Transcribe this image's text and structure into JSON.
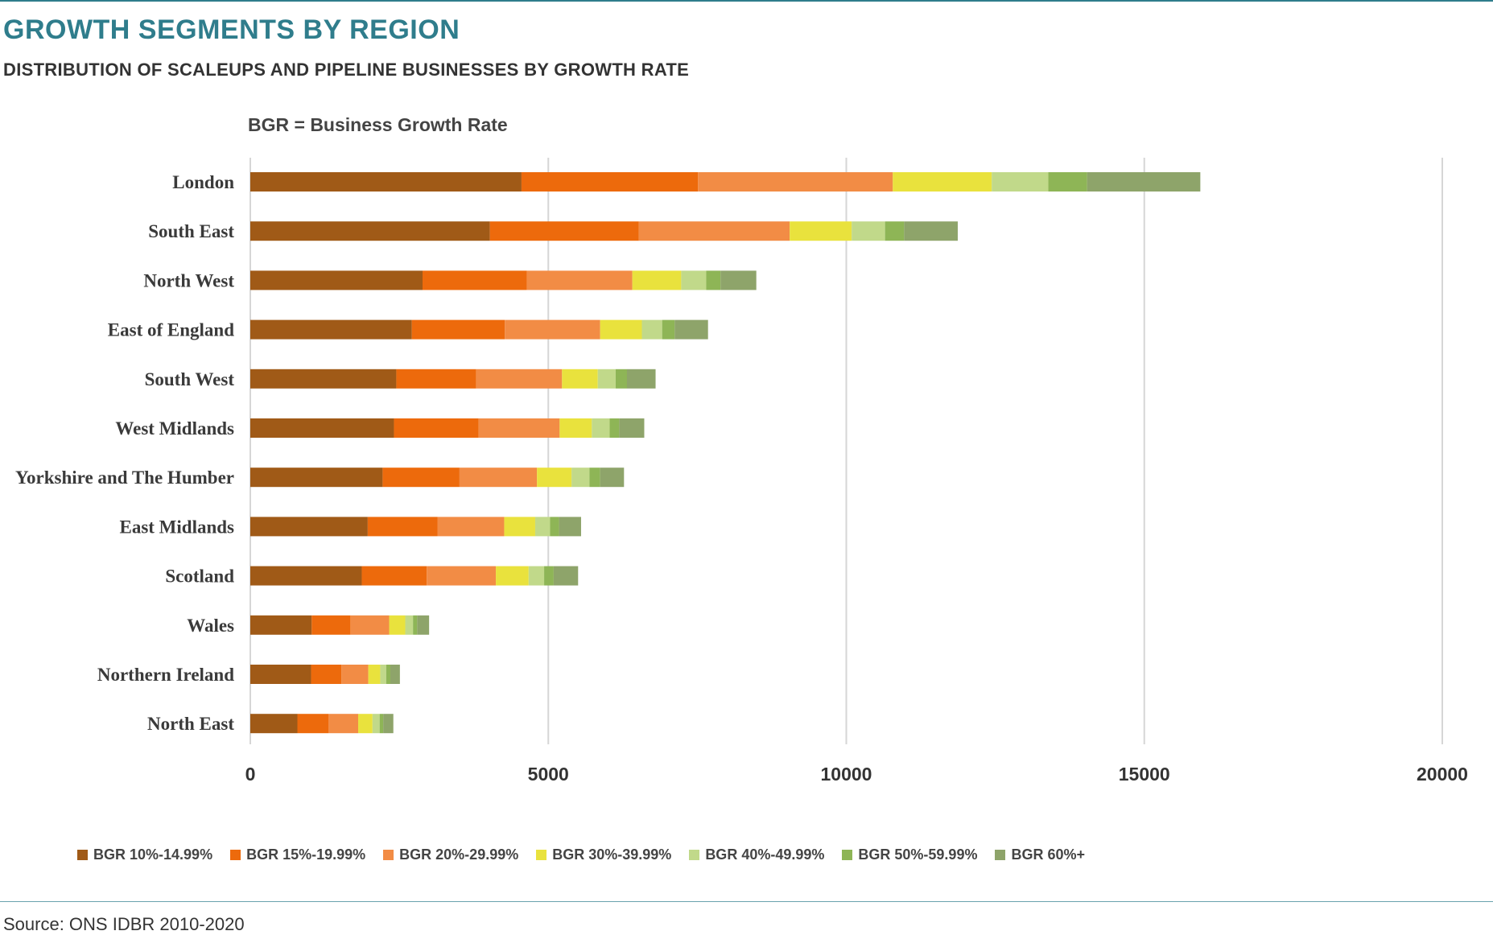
{
  "header": {
    "title": "GROWTH SEGMENTS BY REGION",
    "subtitle": "DISTRIBUTION OF SCALEUPS AND PIPELINE BUSINESSES BY GROWTH RATE",
    "note": "BGR = Business Growth Rate"
  },
  "footer": {
    "source": "Source: ONS IDBR 2010-2020"
  },
  "chart_data": {
    "type": "bar",
    "orientation": "horizontal",
    "stacked": true,
    "categories": [
      "London",
      "South East",
      "North West",
      "East of England",
      "South West",
      "West Midlands",
      "Yorkshire and The Humber",
      "East Midlands",
      "Scotland",
      "Wales",
      "Northern Ireland",
      "North East"
    ],
    "xlim": [
      0,
      20000
    ],
    "xticks": [
      0,
      5000,
      10000,
      15000,
      20000
    ],
    "xtick_labels": [
      "0",
      "5000",
      "10000",
      "15000",
      "20000"
    ],
    "grid": "vertical",
    "legend_position": "bottom",
    "series": [
      {
        "name": "BGR 10%-14.99%",
        "color": "#a05a17",
        "values": [
          4550,
          4020,
          2890,
          2710,
          2450,
          2410,
          2220,
          1970,
          1870,
          1030,
          1020,
          790
        ]
      },
      {
        "name": "BGR 15%-19.99%",
        "color": "#ed6a0c",
        "values": [
          2960,
          2500,
          1750,
          1560,
          1340,
          1420,
          1290,
          1170,
          1090,
          650,
          510,
          520
        ]
      },
      {
        "name": "BGR 20%-29.99%",
        "color": "#f28c45",
        "values": [
          3270,
          2530,
          1770,
          1600,
          1440,
          1360,
          1300,
          1120,
          1160,
          650,
          450,
          500
        ]
      },
      {
        "name": "BGR 30%-39.99%",
        "color": "#e9e23d",
        "values": [
          1660,
          1040,
          820,
          700,
          600,
          540,
          580,
          520,
          550,
          270,
          200,
          240
        ]
      },
      {
        "name": "BGR 40%-49.99%",
        "color": "#c1d98a",
        "values": [
          950,
          560,
          420,
          340,
          300,
          300,
          300,
          250,
          260,
          130,
          100,
          120
        ]
      },
      {
        "name": "BGR 50%-59.99%",
        "color": "#8eb556",
        "values": [
          650,
          320,
          240,
          210,
          190,
          160,
          180,
          150,
          160,
          70,
          70,
          60
        ]
      },
      {
        "name": "BGR 60%+",
        "color": "#8ea46a",
        "values": [
          1900,
          900,
          600,
          560,
          480,
          420,
          400,
          370,
          410,
          200,
          160,
          170
        ]
      }
    ]
  }
}
